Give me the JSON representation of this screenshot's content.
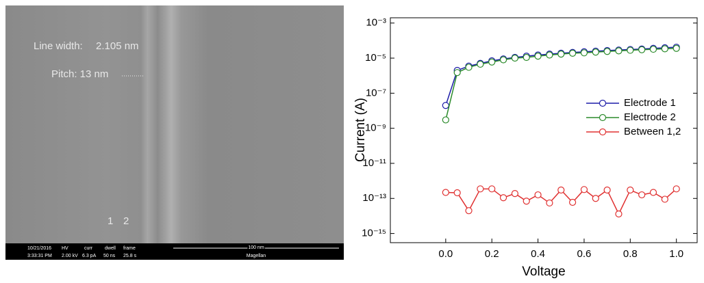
{
  "sem": {
    "line_width_label": "Line width:",
    "line_width_value": "2.105 nm",
    "pitch": "Pitch: 13 nm",
    "marker_1": "1",
    "marker_2": "2",
    "info": {
      "date": "10/21/2016",
      "time": "3:33:31 PM",
      "hv_label": "HV",
      "hv": "2.00 kV",
      "curr_label": "curr",
      "curr": "6.3 pA",
      "dwell_label": "dwell",
      "dwell": "50 ns",
      "frame_label": "frame",
      "frame": "25.8 s",
      "scale": "100 nm",
      "instrument": "Magellan"
    }
  },
  "chart_data": {
    "type": "line",
    "xlabel": "Voltage",
    "ylabel": "Current (A)",
    "log_y": true,
    "legend": "right",
    "x": [
      0,
      0.05,
      0.1,
      0.15,
      0.2,
      0.25,
      0.3,
      0.35,
      0.4,
      0.45,
      0.5,
      0.55,
      0.6,
      0.65,
      0.7,
      0.75,
      0.8,
      0.85,
      0.9,
      0.95,
      1.0
    ],
    "series": [
      {
        "name": "Electrode 1",
        "color": "#1c1ca8",
        "values": [
          2e-08,
          2e-06,
          3.5e-06,
          5e-06,
          7e-06,
          9e-06,
          1.1e-05,
          1.3e-05,
          1.5e-05,
          1.7e-05,
          1.9e-05,
          2.1e-05,
          2.3e-05,
          2.5e-05,
          2.7e-05,
          2.9e-05,
          3.1e-05,
          3.3e-05,
          3.6e-05,
          3.9e-05,
          4.2e-05
        ]
      },
      {
        "name": "Electrode 2",
        "color": "#2a8a2a",
        "values": [
          3e-09,
          1.5e-06,
          3e-06,
          4.5e-06,
          6e-06,
          8e-06,
          1e-05,
          1.1e-05,
          1.3e-05,
          1.5e-05,
          1.7e-05,
          1.9e-05,
          2e-05,
          2.2e-05,
          2.4e-05,
          2.6e-05,
          2.8e-05,
          3e-05,
          3.2e-05,
          3.4e-05,
          3.6e-05
        ]
      },
      {
        "name": "Between 1,2",
        "color": "#e03030",
        "values": [
          2.2e-13,
          2.1e-13,
          2e-14,
          3.5e-13,
          3.5e-13,
          1.1e-13,
          1.9e-13,
          7e-14,
          1.6e-13,
          5.5e-14,
          3e-13,
          6e-14,
          3.2e-13,
          1e-13,
          3e-13,
          1.3e-14,
          3e-13,
          1.6e-13,
          2.2e-13,
          9e-14,
          3.5e-13
        ]
      }
    ],
    "xlim": [
      -0.24,
      1.09
    ],
    "xticks": [
      {
        "value": 0,
        "label": "0.0"
      },
      {
        "value": 0.2,
        "label": "0.2"
      },
      {
        "value": 0.4,
        "label": "0.4"
      },
      {
        "value": 0.6,
        "label": "0.6"
      },
      {
        "value": 0.8,
        "label": "0.8"
      },
      {
        "value": 1.0,
        "label": "1.0"
      }
    ],
    "ylim": [
      3e-16,
      0.002
    ],
    "yticks": [
      {
        "value": 1e-15,
        "label": "10⁻¹⁵"
      },
      {
        "value": 1e-13,
        "label": "10⁻¹³"
      },
      {
        "value": 1e-11,
        "label": "10⁻¹¹"
      },
      {
        "value": 1e-09,
        "label": "10⁻⁹"
      },
      {
        "value": 1e-07,
        "label": "10⁻⁷"
      },
      {
        "value": 1e-05,
        "label": "10⁻⁵"
      },
      {
        "value": 0.001,
        "label": "10⁻³"
      }
    ]
  }
}
